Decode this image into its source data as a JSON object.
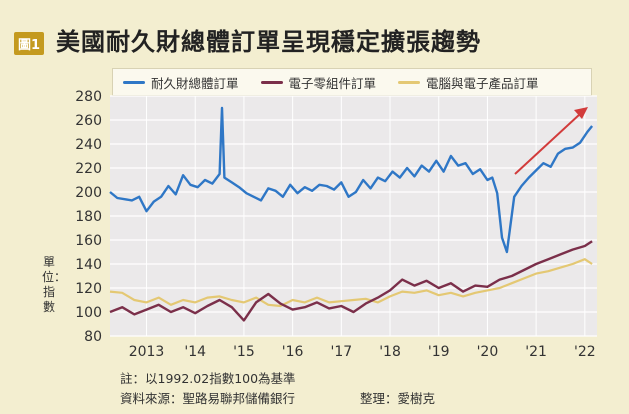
{
  "figure": {
    "badge": "圖1",
    "title": "美國耐久財總體訂單呈現穩定擴張趨勢",
    "note": "註：以1992.02指數100為基準",
    "source": "資料來源：聖路易聯邦儲備銀行",
    "credit": "整理：愛樹克",
    "ylabel": "單位：指數"
  },
  "chart_data": {
    "type": "line",
    "title": "美國耐久財總體訂單呈現穩定擴張趨勢",
    "ylabel": "單位：指數",
    "xlabel": "",
    "ylim": [
      80,
      280
    ],
    "xlim": [
      2012.25,
      2022.25
    ],
    "yticks": [
      80,
      100,
      120,
      140,
      160,
      180,
      200,
      220,
      240,
      260,
      280
    ],
    "xticks": [
      {
        "x": 2013,
        "label": "2013"
      },
      {
        "x": 2014,
        "label": "'14"
      },
      {
        "x": 2015,
        "label": "'15"
      },
      {
        "x": 2016,
        "label": "'16"
      },
      {
        "x": 2017,
        "label": "'17"
      },
      {
        "x": 2018,
        "label": "'18"
      },
      {
        "x": 2019,
        "label": "'19"
      },
      {
        "x": 2020,
        "label": "'20"
      },
      {
        "x": 2021,
        "label": "'21"
      },
      {
        "x": 2022,
        "label": "'22"
      }
    ],
    "grid": true,
    "legend_position": "top",
    "colors": {
      "durable": "#2f77c6",
      "electronic": "#7b2f4a",
      "computer": "#e4c873",
      "arrow": "#d23b3b",
      "grid": "#ffffff",
      "plot_bg": "#ebe9ea"
    },
    "series": [
      {
        "name": "耐久財總體訂單",
        "x": [
          2012.25,
          2012.4,
          2012.55,
          2012.7,
          2012.85,
          2013.0,
          2013.15,
          2013.3,
          2013.45,
          2013.6,
          2013.75,
          2013.9,
          2014.05,
          2014.2,
          2014.35,
          2014.5,
          2014.55,
          2014.6,
          2014.75,
          2014.9,
          2015.05,
          2015.2,
          2015.35,
          2015.5,
          2015.65,
          2015.8,
          2015.95,
          2016.1,
          2016.25,
          2016.4,
          2016.55,
          2016.7,
          2016.85,
          2017.0,
          2017.15,
          2017.3,
          2017.45,
          2017.6,
          2017.75,
          2017.9,
          2018.05,
          2018.2,
          2018.35,
          2018.5,
          2018.65,
          2018.8,
          2018.95,
          2019.1,
          2019.25,
          2019.4,
          2019.55,
          2019.7,
          2019.85,
          2020.0,
          2020.1,
          2020.2,
          2020.3,
          2020.4,
          2020.55,
          2020.7,
          2020.85,
          2021.0,
          2021.15,
          2021.3,
          2021.45,
          2021.6,
          2021.75,
          2021.9,
          2022.05,
          2022.15
        ],
        "values": [
          200,
          195,
          194,
          193,
          196,
          184,
          192,
          196,
          205,
          198,
          214,
          206,
          204,
          210,
          207,
          215,
          270,
          212,
          208,
          204,
          199,
          196,
          193,
          203,
          201,
          196,
          206,
          199,
          204,
          201,
          206,
          205,
          202,
          208,
          196,
          200,
          210,
          203,
          212,
          209,
          217,
          212,
          220,
          213,
          222,
          217,
          226,
          217,
          230,
          222,
          224,
          215,
          219,
          210,
          212,
          199,
          162,
          150,
          196,
          205,
          212,
          218,
          224,
          221,
          232,
          236,
          237,
          241,
          250,
          255
        ]
      },
      {
        "name": "電子零組件訂單",
        "x": [
          2012.25,
          2012.5,
          2012.75,
          2013.0,
          2013.25,
          2013.5,
          2013.75,
          2014.0,
          2014.25,
          2014.5,
          2014.75,
          2015.0,
          2015.25,
          2015.5,
          2015.75,
          2016.0,
          2016.25,
          2016.5,
          2016.75,
          2017.0,
          2017.25,
          2017.5,
          2017.75,
          2018.0,
          2018.25,
          2018.5,
          2018.75,
          2019.0,
          2019.25,
          2019.5,
          2019.75,
          2020.0,
          2020.25,
          2020.5,
          2020.75,
          2021.0,
          2021.25,
          2021.5,
          2021.75,
          2022.0,
          2022.15
        ],
        "values": [
          100,
          104,
          98,
          102,
          106,
          100,
          104,
          99,
          105,
          110,
          104,
          93,
          108,
          115,
          107,
          102,
          104,
          108,
          103,
          105,
          100,
          107,
          112,
          118,
          127,
          122,
          126,
          120,
          124,
          117,
          122,
          121,
          127,
          130,
          135,
          140,
          144,
          148,
          152,
          155,
          159
        ]
      },
      {
        "name": "電腦與電子產品訂單",
        "x": [
          2012.25,
          2012.5,
          2012.75,
          2013.0,
          2013.25,
          2013.5,
          2013.75,
          2014.0,
          2014.25,
          2014.5,
          2014.75,
          2015.0,
          2015.25,
          2015.5,
          2015.75,
          2016.0,
          2016.25,
          2016.5,
          2016.75,
          2017.0,
          2017.25,
          2017.5,
          2017.75,
          2018.0,
          2018.25,
          2018.5,
          2018.75,
          2019.0,
          2019.25,
          2019.5,
          2019.75,
          2020.0,
          2020.25,
          2020.5,
          2020.75,
          2021.0,
          2021.25,
          2021.5,
          2021.75,
          2022.0,
          2022.15
        ],
        "values": [
          117,
          116,
          110,
          108,
          112,
          106,
          110,
          108,
          112,
          113,
          110,
          108,
          112,
          106,
          105,
          110,
          108,
          112,
          108,
          109,
          110,
          111,
          108,
          113,
          117,
          116,
          118,
          114,
          116,
          113,
          116,
          118,
          120,
          124,
          128,
          132,
          134,
          137,
          140,
          144,
          140
        ]
      }
    ]
  }
}
